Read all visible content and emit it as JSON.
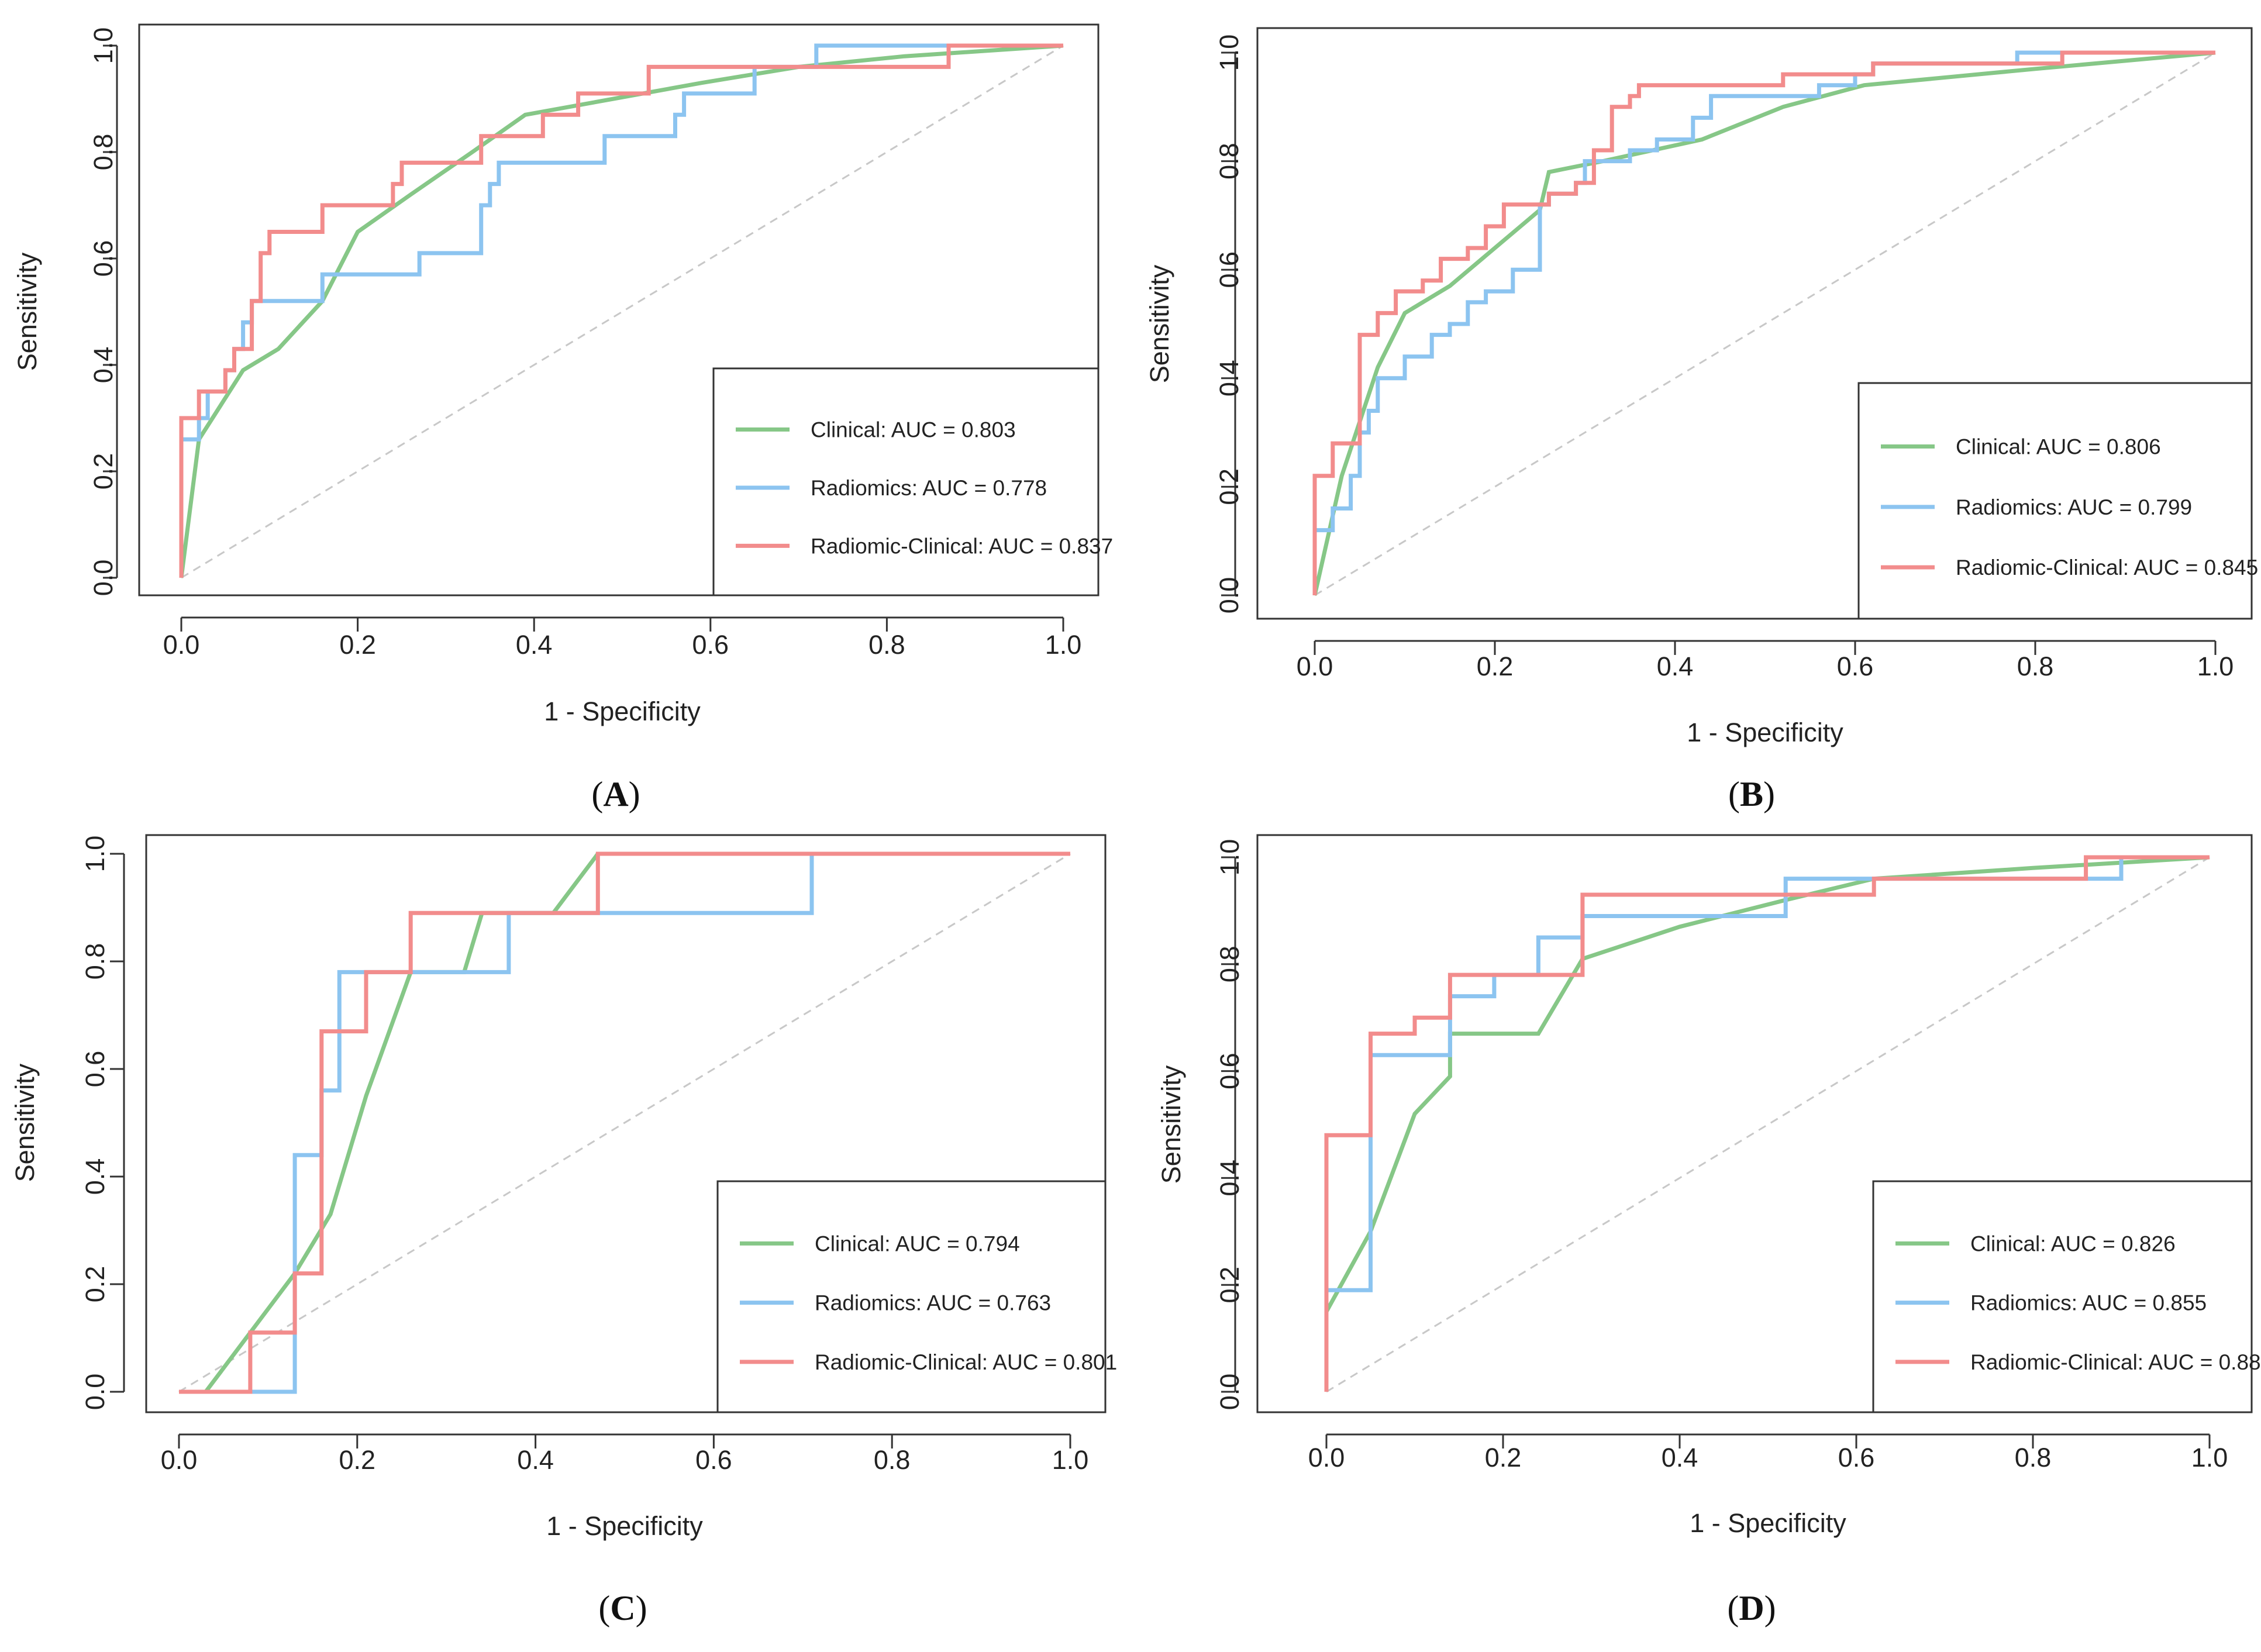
{
  "colors": {
    "clinical": "#86c787",
    "radiomics": "#8cc4f0",
    "radiomic_clinical": "#f28c8c",
    "diagonal": "#c8c8c8",
    "frame": "#333333"
  },
  "chart_data": [
    {
      "type": "line",
      "panel": "A",
      "xlabel": "1 - Specificity",
      "ylabel": "Sensitivity",
      "xlim": [
        0,
        1
      ],
      "ylim": [
        0,
        1
      ],
      "x_ticks": [
        "0.0",
        "0.2",
        "0.4",
        "0.6",
        "0.8",
        "1.0"
      ],
      "y_ticks": [
        "0.0",
        "0.2",
        "0.4",
        "0.6",
        "0.8",
        "1.0"
      ],
      "legend_position": "bottom-right",
      "reference_diagonal": true,
      "series": [
        {
          "name": "Clinical",
          "legend": "Clinical: AUC = 0.803",
          "auc": 0.803,
          "color_key": "clinical",
          "x": [
            0,
            0.02,
            0.07,
            0.11,
            0.16,
            0.2,
            0.26,
            0.33,
            0.39,
            0.49,
            0.59,
            0.7,
            0.82,
            1.0
          ],
          "y": [
            0,
            0.26,
            0.39,
            0.43,
            0.52,
            0.65,
            0.72,
            0.8,
            0.87,
            0.9,
            0.93,
            0.96,
            0.98,
            1.0
          ]
        },
        {
          "name": "Radiomics",
          "legend": "Radiomics: AUC = 0.778",
          "auc": 0.778,
          "color_key": "radiomics",
          "x": [
            0,
            0,
            0.02,
            0.02,
            0.03,
            0.03,
            0.05,
            0.05,
            0.06,
            0.06,
            0.07,
            0.07,
            0.08,
            0.08,
            0.16,
            0.16,
            0.27,
            0.27,
            0.34,
            0.34,
            0.35,
            0.35,
            0.36,
            0.36,
            0.48,
            0.48,
            0.56,
            0.56,
            0.57,
            0.57,
            0.59,
            0.59,
            0.65,
            0.65,
            0.72,
            0.72,
            1.0
          ],
          "y": [
            0,
            0.26,
            0.26,
            0.3,
            0.3,
            0.35,
            0.35,
            0.39,
            0.39,
            0.43,
            0.43,
            0.48,
            0.48,
            0.52,
            0.52,
            0.57,
            0.57,
            0.61,
            0.61,
            0.7,
            0.7,
            0.74,
            0.74,
            0.78,
            0.78,
            0.83,
            0.83,
            0.87,
            0.87,
            0.91,
            0.91,
            0.91,
            0.91,
            0.96,
            0.96,
            1.0,
            1.0
          ]
        },
        {
          "name": "Radiomic-Clinical",
          "legend": "Radiomic-Clinical: AUC = 0.837",
          "auc": 0.837,
          "color_key": "radiomic_clinical",
          "x": [
            0,
            0,
            0.02,
            0.02,
            0.05,
            0.05,
            0.06,
            0.06,
            0.08,
            0.08,
            0.09,
            0.09,
            0.1,
            0.1,
            0.16,
            0.16,
            0.24,
            0.24,
            0.25,
            0.25,
            0.34,
            0.34,
            0.37,
            0.37,
            0.41,
            0.41,
            0.45,
            0.45,
            0.53,
            0.53,
            0.87,
            0.87,
            1.0
          ],
          "y": [
            0,
            0.3,
            0.3,
            0.35,
            0.35,
            0.39,
            0.39,
            0.43,
            0.43,
            0.52,
            0.52,
            0.61,
            0.61,
            0.65,
            0.65,
            0.7,
            0.7,
            0.74,
            0.74,
            0.78,
            0.78,
            0.83,
            0.83,
            0.83,
            0.83,
            0.87,
            0.87,
            0.91,
            0.91,
            0.96,
            0.96,
            1.0,
            1.0
          ]
        }
      ]
    },
    {
      "type": "line",
      "panel": "B",
      "xlabel": "1 - Specificity",
      "ylabel": "Sensitivity",
      "xlim": [
        0,
        1
      ],
      "ylim": [
        0,
        1
      ],
      "x_ticks": [
        "0.0",
        "0.2",
        "0.4",
        "0.6",
        "0.8",
        "1.0"
      ],
      "y_ticks": [
        "0.0",
        "0.2",
        "0.4",
        "0.6",
        "0.8",
        "1.0"
      ],
      "legend_position": "bottom-right",
      "reference_diagonal": true,
      "series": [
        {
          "name": "Clinical",
          "legend": "Clinical: AUC = 0.806",
          "auc": 0.806,
          "color_key": "clinical",
          "x": [
            0,
            0.03,
            0.07,
            0.1,
            0.15,
            0.2,
            0.25,
            0.26,
            0.32,
            0.43,
            0.52,
            0.61,
            0.8,
            1.0
          ],
          "y": [
            0,
            0.22,
            0.42,
            0.52,
            0.57,
            0.64,
            0.71,
            0.78,
            0.8,
            0.84,
            0.9,
            0.94,
            0.97,
            1.0
          ]
        },
        {
          "name": "Radiomics",
          "legend": "Radiomics: AUC = 0.799",
          "auc": 0.799,
          "color_key": "radiomics",
          "x": [
            0,
            0,
            0.02,
            0.02,
            0.04,
            0.04,
            0.05,
            0.05,
            0.06,
            0.06,
            0.07,
            0.07,
            0.1,
            0.1,
            0.13,
            0.13,
            0.15,
            0.15,
            0.17,
            0.17,
            0.19,
            0.19,
            0.22,
            0.22,
            0.25,
            0.25,
            0.26,
            0.26,
            0.29,
            0.29,
            0.3,
            0.3,
            0.35,
            0.35,
            0.38,
            0.38,
            0.42,
            0.42,
            0.44,
            0.44,
            0.56,
            0.56,
            0.6,
            0.6,
            0.62,
            0.62,
            0.78,
            0.78,
            1.0
          ],
          "y": [
            0,
            0.12,
            0.12,
            0.16,
            0.16,
            0.22,
            0.22,
            0.3,
            0.3,
            0.34,
            0.34,
            0.4,
            0.4,
            0.44,
            0.44,
            0.48,
            0.48,
            0.5,
            0.5,
            0.54,
            0.54,
            0.56,
            0.56,
            0.6,
            0.6,
            0.72,
            0.72,
            0.74,
            0.74,
            0.76,
            0.76,
            0.8,
            0.8,
            0.82,
            0.82,
            0.84,
            0.84,
            0.88,
            0.88,
            0.92,
            0.92,
            0.94,
            0.94,
            0.96,
            0.96,
            0.98,
            0.98,
            1.0,
            1.0
          ]
        },
        {
          "name": "Radiomic-Clinical",
          "legend": "Radiomic-Clinical: AUC = 0.845",
          "auc": 0.845,
          "color_key": "radiomic_clinical",
          "x": [
            0,
            0,
            0.02,
            0.02,
            0.05,
            0.05,
            0.07,
            0.07,
            0.09,
            0.09,
            0.12,
            0.12,
            0.14,
            0.14,
            0.17,
            0.17,
            0.19,
            0.19,
            0.21,
            0.21,
            0.26,
            0.26,
            0.29,
            0.29,
            0.31,
            0.31,
            0.33,
            0.33,
            0.35,
            0.35,
            0.36,
            0.36,
            0.52,
            0.52,
            0.62,
            0.62,
            0.83,
            0.83,
            1.0
          ],
          "y": [
            0,
            0.22,
            0.22,
            0.28,
            0.28,
            0.48,
            0.48,
            0.52,
            0.52,
            0.56,
            0.56,
            0.58,
            0.58,
            0.62,
            0.62,
            0.64,
            0.64,
            0.68,
            0.68,
            0.72,
            0.72,
            0.74,
            0.74,
            0.76,
            0.76,
            0.82,
            0.82,
            0.9,
            0.9,
            0.92,
            0.92,
            0.94,
            0.94,
            0.96,
            0.96,
            0.98,
            0.98,
            1.0,
            1.0
          ]
        }
      ]
    },
    {
      "type": "line",
      "panel": "C",
      "xlabel": "1 - Specificity",
      "ylabel": "Sensitivity",
      "xlim": [
        0,
        1
      ],
      "ylim": [
        0,
        1
      ],
      "x_ticks": [
        "0.0",
        "0.2",
        "0.4",
        "0.6",
        "0.8",
        "1.0"
      ],
      "y_ticks": [
        "0.0",
        "0.2",
        "0.4",
        "0.6",
        "0.8",
        "1.0"
      ],
      "legend_position": "bottom-right",
      "reference_diagonal": true,
      "series": [
        {
          "name": "Clinical",
          "legend": "Clinical: AUC = 0.794",
          "auc": 0.794,
          "color_key": "clinical",
          "x": [
            0,
            0.03,
            0.08,
            0.13,
            0.17,
            0.21,
            0.26,
            0.32,
            0.34,
            0.37,
            0.42,
            0.47,
            1.0
          ],
          "y": [
            0,
            0,
            0.11,
            0.22,
            0.33,
            0.55,
            0.78,
            0.78,
            0.89,
            0.89,
            0.89,
            1.0,
            1.0
          ]
        },
        {
          "name": "Radiomics",
          "legend": "Radiomics: AUC = 0.763",
          "auc": 0.763,
          "color_key": "radiomics",
          "x": [
            0,
            0.13,
            0.13,
            0.16,
            0.16,
            0.18,
            0.18,
            0.19,
            0.19,
            0.37,
            0.37,
            0.71,
            0.71,
            1.0
          ],
          "y": [
            0,
            0,
            0.44,
            0.44,
            0.56,
            0.56,
            0.78,
            0.78,
            0.78,
            0.78,
            0.89,
            0.89,
            1.0,
            1.0
          ]
        },
        {
          "name": "Radiomic-Clinical",
          "legend": "Radiomic-Clinical: AUC = 0.801",
          "auc": 0.801,
          "color_key": "radiomic_clinical",
          "x": [
            0,
            0.08,
            0.08,
            0.13,
            0.13,
            0.16,
            0.16,
            0.21,
            0.21,
            0.26,
            0.26,
            0.47,
            0.47,
            1.0
          ],
          "y": [
            0,
            0,
            0.11,
            0.11,
            0.22,
            0.22,
            0.67,
            0.67,
            0.78,
            0.78,
            0.89,
            0.89,
            1.0,
            1.0
          ]
        }
      ]
    },
    {
      "type": "line",
      "panel": "D",
      "xlabel": "1 - Specificity",
      "ylabel": "Sensitivity",
      "xlim": [
        0,
        1
      ],
      "ylim": [
        0,
        1
      ],
      "x_ticks": [
        "0.0",
        "0.2",
        "0.4",
        "0.6",
        "0.8",
        "1.0"
      ],
      "y_ticks": [
        "0.0",
        "0.2",
        "0.4",
        "0.6",
        "0.8",
        "1.0"
      ],
      "legend_position": "bottom-right",
      "reference_diagonal": true,
      "series": [
        {
          "name": "Clinical",
          "legend": "Clinical: AUC = 0.826",
          "auc": 0.826,
          "color_key": "clinical",
          "x": [
            0,
            0.05,
            0.1,
            0.14,
            0.14,
            0.24,
            0.29,
            0.4,
            0.52,
            0.62,
            0.8,
            1.0
          ],
          "y": [
            0.15,
            0.3,
            0.52,
            0.59,
            0.67,
            0.67,
            0.81,
            0.87,
            0.92,
            0.96,
            0.98,
            1.0
          ]
        },
        {
          "name": "Radiomics",
          "legend": "Radiomics: AUC = 0.855",
          "auc": 0.855,
          "color_key": "radiomics",
          "x": [
            0,
            0,
            0.05,
            0.05,
            0.14,
            0.14,
            0.19,
            0.19,
            0.24,
            0.24,
            0.29,
            0.29,
            0.52,
            0.52,
            0.9,
            0.9,
            1.0
          ],
          "y": [
            0,
            0.19,
            0.19,
            0.63,
            0.63,
            0.74,
            0.74,
            0.78,
            0.78,
            0.85,
            0.85,
            0.89,
            0.89,
            0.96,
            0.96,
            1.0,
            1.0
          ]
        },
        {
          "name": "Radiomic-Clinical",
          "legend": "Radiomic-Clinical: AUC = 0.88",
          "auc": 0.88,
          "color_key": "radiomic_clinical",
          "x": [
            0,
            0,
            0.05,
            0.05,
            0.1,
            0.1,
            0.14,
            0.14,
            0.29,
            0.29,
            0.62,
            0.62,
            0.86,
            0.86,
            1.0
          ],
          "y": [
            0,
            0.48,
            0.48,
            0.67,
            0.67,
            0.7,
            0.7,
            0.78,
            0.78,
            0.93,
            0.93,
            0.96,
            0.96,
            1.0,
            1.0
          ]
        }
      ]
    }
  ]
}
